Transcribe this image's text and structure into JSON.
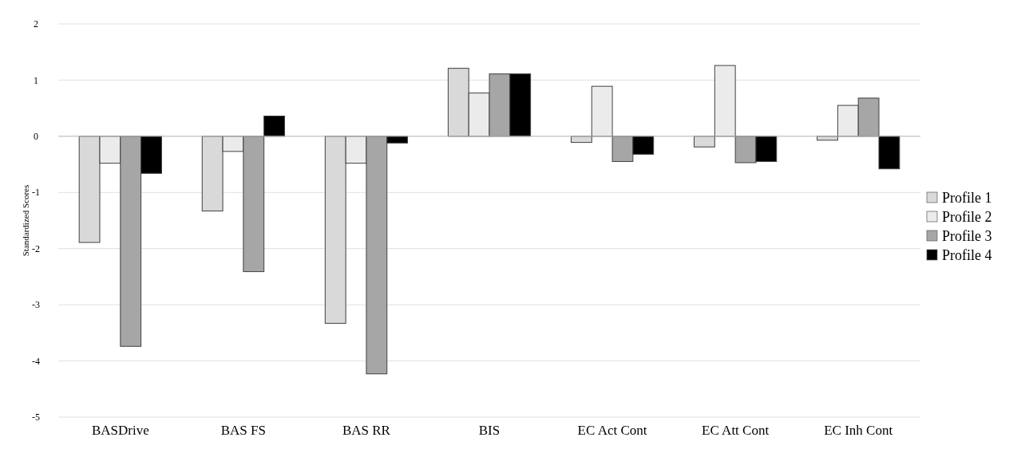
{
  "chart_data": {
    "type": "bar",
    "ylabel": "Standardized Scores",
    "categories": [
      "BASDrive",
      "BAS FS",
      "BAS RR",
      "BIS",
      "EC Act Cont",
      "EC Att Cont",
      "EC Inh Cont"
    ],
    "series": [
      {
        "name": "Profile 1",
        "color": "#d9d9d9",
        "values": [
          -1.89,
          -1.33,
          -3.33,
          1.21,
          -0.11,
          -0.19,
          -0.07
        ]
      },
      {
        "name": "Profile 2",
        "color": "#ebebeb",
        "values": [
          -0.48,
          -0.27,
          -0.48,
          0.77,
          0.89,
          1.26,
          0.55
        ]
      },
      {
        "name": "Profile 3",
        "color": "#a6a6a6",
        "values": [
          -3.74,
          -2.41,
          -4.23,
          1.11,
          -0.45,
          -0.47,
          0.68
        ]
      },
      {
        "name": "Profile 4",
        "color": "#000000",
        "values": [
          -0.66,
          0.36,
          -0.12,
          1.11,
          -0.32,
          -0.45,
          -0.58
        ]
      }
    ],
    "ylim": [
      -5,
      2
    ],
    "yticks": [
      -5,
      -4,
      -3,
      -2,
      -1,
      0,
      1,
      2
    ],
    "grid": "y",
    "legend": "right"
  }
}
